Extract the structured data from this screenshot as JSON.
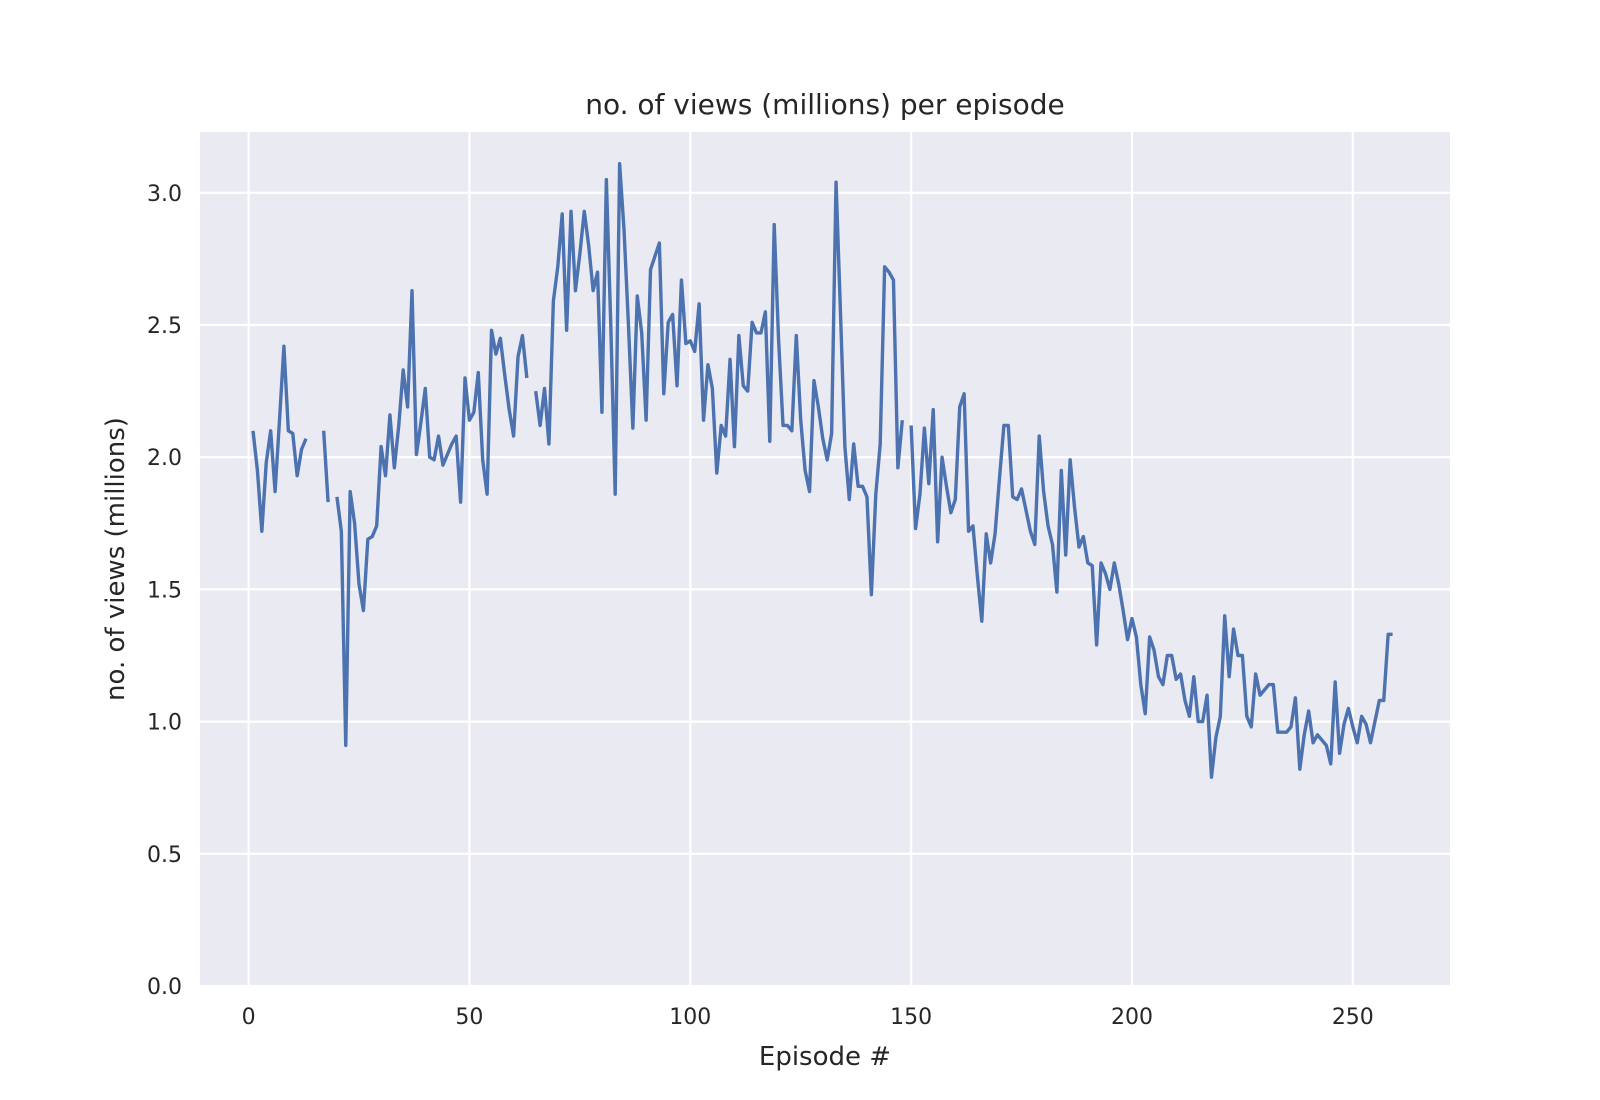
{
  "chart_data": {
    "type": "line",
    "title": "no. of views (millions) per episode",
    "xlabel": "Episode #",
    "ylabel": "no. of views (millions)",
    "xlim": [
      -11,
      272
    ],
    "ylim": [
      0,
      3.23
    ],
    "xticks": [
      0,
      50,
      100,
      150,
      200,
      250
    ],
    "xtick_labels": [
      "0",
      "50",
      "100",
      "150",
      "200",
      "250"
    ],
    "yticks": [
      0,
      0.5,
      1.0,
      1.5,
      2.0,
      2.5,
      3.0
    ],
    "ytick_labels": [
      "0.0",
      "0.5",
      "1.0",
      "1.5",
      "2.0",
      "2.5",
      "3.0"
    ],
    "grid": true,
    "background": "#eaeaf2",
    "gridline_color": "#ffffff",
    "series": [
      {
        "color": "#4c72b0",
        "points": [
          [
            1,
            2.1
          ],
          [
            2,
            1.95
          ],
          [
            3,
            1.72
          ],
          [
            4,
            1.98
          ],
          [
            5,
            2.1
          ],
          [
            6,
            1.87
          ],
          [
            7,
            2.14
          ],
          [
            8,
            2.42
          ],
          [
            9,
            2.1
          ],
          [
            10,
            2.09
          ],
          [
            11,
            1.93
          ],
          [
            12,
            2.03
          ],
          [
            13,
            2.07
          ],
          [
            14,
            null
          ],
          [
            15,
            null
          ],
          [
            16,
            null
          ],
          [
            17,
            2.1
          ],
          [
            18,
            1.83
          ],
          [
            19,
            null
          ],
          [
            20,
            1.85
          ],
          [
            21,
            1.72
          ],
          [
            22,
            0.91
          ],
          [
            23,
            1.87
          ],
          [
            24,
            1.75
          ],
          [
            25,
            1.52
          ],
          [
            26,
            1.42
          ],
          [
            27,
            1.69
          ],
          [
            28,
            1.7
          ],
          [
            29,
            1.74
          ],
          [
            30,
            2.04
          ],
          [
            31,
            1.93
          ],
          [
            32,
            2.16
          ],
          [
            33,
            1.96
          ],
          [
            34,
            2.12
          ],
          [
            35,
            2.33
          ],
          [
            36,
            2.19
          ],
          [
            37,
            2.63
          ],
          [
            38,
            2.01
          ],
          [
            39,
            2.13
          ],
          [
            40,
            2.26
          ],
          [
            41,
            2.0
          ],
          [
            42,
            1.99
          ],
          [
            43,
            2.08
          ],
          [
            44,
            1.97
          ],
          [
            45,
            2.01
          ],
          [
            46,
            2.05
          ],
          [
            47,
            2.08
          ],
          [
            48,
            1.83
          ],
          [
            49,
            2.3
          ],
          [
            50,
            2.14
          ],
          [
            51,
            2.17
          ],
          [
            52,
            2.32
          ],
          [
            53,
            1.99
          ],
          [
            54,
            1.86
          ],
          [
            55,
            2.48
          ],
          [
            56,
            2.39
          ],
          [
            57,
            2.45
          ],
          [
            58,
            2.31
          ],
          [
            59,
            2.18
          ],
          [
            60,
            2.08
          ],
          [
            61,
            2.38
          ],
          [
            62,
            2.46
          ],
          [
            63,
            2.3
          ],
          [
            64,
            null
          ],
          [
            65,
            2.25
          ],
          [
            66,
            2.12
          ],
          [
            67,
            2.26
          ],
          [
            68,
            2.05
          ],
          [
            69,
            2.59
          ],
          [
            70,
            2.72
          ],
          [
            71,
            2.92
          ],
          [
            72,
            2.48
          ],
          [
            73,
            2.93
          ],
          [
            74,
            2.63
          ],
          [
            75,
            2.77
          ],
          [
            76,
            2.93
          ],
          [
            77,
            2.8
          ],
          [
            78,
            2.63
          ],
          [
            79,
            2.7
          ],
          [
            80,
            2.17
          ],
          [
            81,
            3.05
          ],
          [
            82,
            2.5
          ],
          [
            83,
            1.86
          ],
          [
            84,
            3.11
          ],
          [
            85,
            2.86
          ],
          [
            86,
            2.5
          ],
          [
            87,
            2.11
          ],
          [
            88,
            2.61
          ],
          [
            89,
            2.47
          ],
          [
            90,
            2.14
          ],
          [
            91,
            2.71
          ],
          [
            92,
            2.76
          ],
          [
            93,
            2.81
          ],
          [
            94,
            2.24
          ],
          [
            95,
            2.51
          ],
          [
            96,
            2.54
          ],
          [
            97,
            2.27
          ],
          [
            98,
            2.67
          ],
          [
            99,
            2.43
          ],
          [
            100,
            2.44
          ],
          [
            101,
            2.4
          ],
          [
            102,
            2.58
          ],
          [
            103,
            2.14
          ],
          [
            104,
            2.35
          ],
          [
            105,
            2.26
          ],
          [
            106,
            1.94
          ],
          [
            107,
            2.12
          ],
          [
            108,
            2.08
          ],
          [
            109,
            2.37
          ],
          [
            110,
            2.04
          ],
          [
            111,
            2.46
          ],
          [
            112,
            2.27
          ],
          [
            113,
            2.25
          ],
          [
            114,
            2.51
          ],
          [
            115,
            2.47
          ],
          [
            116,
            2.47
          ],
          [
            117,
            2.55
          ],
          [
            118,
            2.06
          ],
          [
            119,
            2.88
          ],
          [
            120,
            2.44
          ],
          [
            121,
            2.12
          ],
          [
            122,
            2.12
          ],
          [
            123,
            2.1
          ],
          [
            124,
            2.46
          ],
          [
            125,
            2.14
          ],
          [
            126,
            1.95
          ],
          [
            127,
            1.87
          ],
          [
            128,
            2.29
          ],
          [
            129,
            2.19
          ],
          [
            130,
            2.07
          ],
          [
            131,
            1.99
          ],
          [
            132,
            2.09
          ],
          [
            133,
            3.04
          ],
          [
            134,
            2.55
          ],
          [
            135,
            2.04
          ],
          [
            136,
            1.84
          ],
          [
            137,
            2.05
          ],
          [
            138,
            1.89
          ],
          [
            139,
            1.89
          ],
          [
            140,
            1.85
          ],
          [
            141,
            1.48
          ],
          [
            142,
            1.86
          ],
          [
            143,
            2.05
          ],
          [
            144,
            2.72
          ],
          [
            145,
            2.7
          ],
          [
            146,
            2.67
          ],
          [
            147,
            1.96
          ],
          [
            148,
            2.14
          ],
          [
            149,
            null
          ],
          [
            150,
            2.12
          ],
          [
            151,
            1.73
          ],
          [
            152,
            1.86
          ],
          [
            153,
            2.11
          ],
          [
            154,
            1.9
          ],
          [
            155,
            2.18
          ],
          [
            156,
            1.68
          ],
          [
            157,
            2.0
          ],
          [
            158,
            1.89
          ],
          [
            159,
            1.79
          ],
          [
            160,
            1.84
          ],
          [
            161,
            2.19
          ],
          [
            162,
            2.24
          ],
          [
            163,
            1.72
          ],
          [
            164,
            1.74
          ],
          [
            165,
            1.55
          ],
          [
            166,
            1.38
          ],
          [
            167,
            1.71
          ],
          [
            168,
            1.6
          ],
          [
            169,
            1.71
          ],
          [
            170,
            1.92
          ],
          [
            171,
            2.12
          ],
          [
            172,
            2.12
          ],
          [
            173,
            1.85
          ],
          [
            174,
            1.84
          ],
          [
            175,
            1.88
          ],
          [
            176,
            1.8
          ],
          [
            177,
            1.72
          ],
          [
            178,
            1.67
          ],
          [
            179,
            2.08
          ],
          [
            180,
            1.87
          ],
          [
            181,
            1.74
          ],
          [
            182,
            1.67
          ],
          [
            183,
            1.49
          ],
          [
            184,
            1.95
          ],
          [
            185,
            1.63
          ],
          [
            186,
            1.99
          ],
          [
            187,
            1.81
          ],
          [
            188,
            1.66
          ],
          [
            189,
            1.7
          ],
          [
            190,
            1.6
          ],
          [
            191,
            1.59
          ],
          [
            192,
            1.29
          ],
          [
            193,
            1.6
          ],
          [
            194,
            1.56
          ],
          [
            195,
            1.5
          ],
          [
            196,
            1.6
          ],
          [
            197,
            1.52
          ],
          [
            198,
            1.42
          ],
          [
            199,
            1.31
          ],
          [
            200,
            1.39
          ],
          [
            201,
            1.32
          ],
          [
            202,
            1.14
          ],
          [
            203,
            1.03
          ],
          [
            204,
            1.32
          ],
          [
            205,
            1.27
          ],
          [
            206,
            1.17
          ],
          [
            207,
            1.14
          ],
          [
            208,
            1.25
          ],
          [
            209,
            1.25
          ],
          [
            210,
            1.16
          ],
          [
            211,
            1.18
          ],
          [
            212,
            1.08
          ],
          [
            213,
            1.02
          ],
          [
            214,
            1.17
          ],
          [
            215,
            1.0
          ],
          [
            216,
            1.0
          ],
          [
            217,
            1.1
          ],
          [
            218,
            0.79
          ],
          [
            219,
            0.94
          ],
          [
            220,
            1.02
          ],
          [
            221,
            1.4
          ],
          [
            222,
            1.17
          ],
          [
            223,
            1.35
          ],
          [
            224,
            1.25
          ],
          [
            225,
            1.25
          ],
          [
            226,
            1.02
          ],
          [
            227,
            0.98
          ],
          [
            228,
            1.18
          ],
          [
            229,
            1.1
          ],
          [
            230,
            1.12
          ],
          [
            231,
            1.14
          ],
          [
            232,
            1.14
          ],
          [
            233,
            0.96
          ],
          [
            234,
            0.96
          ],
          [
            235,
            0.96
          ],
          [
            236,
            0.98
          ],
          [
            237,
            1.09
          ],
          [
            238,
            0.82
          ],
          [
            239,
            0.95
          ],
          [
            240,
            1.04
          ],
          [
            241,
            0.92
          ],
          [
            242,
            0.95
          ],
          [
            243,
            0.93
          ],
          [
            244,
            0.91
          ],
          [
            245,
            0.84
          ],
          [
            246,
            1.15
          ],
          [
            247,
            0.88
          ],
          [
            248,
            0.99
          ],
          [
            249,
            1.05
          ],
          [
            250,
            0.98
          ],
          [
            251,
            0.92
          ],
          [
            252,
            1.02
          ],
          [
            253,
            0.99
          ],
          [
            254,
            0.92
          ],
          [
            255,
            1.0
          ],
          [
            256,
            1.08
          ],
          [
            257,
            1.08
          ],
          [
            258,
            1.33
          ],
          [
            259,
            1.33
          ]
        ]
      }
    ]
  }
}
